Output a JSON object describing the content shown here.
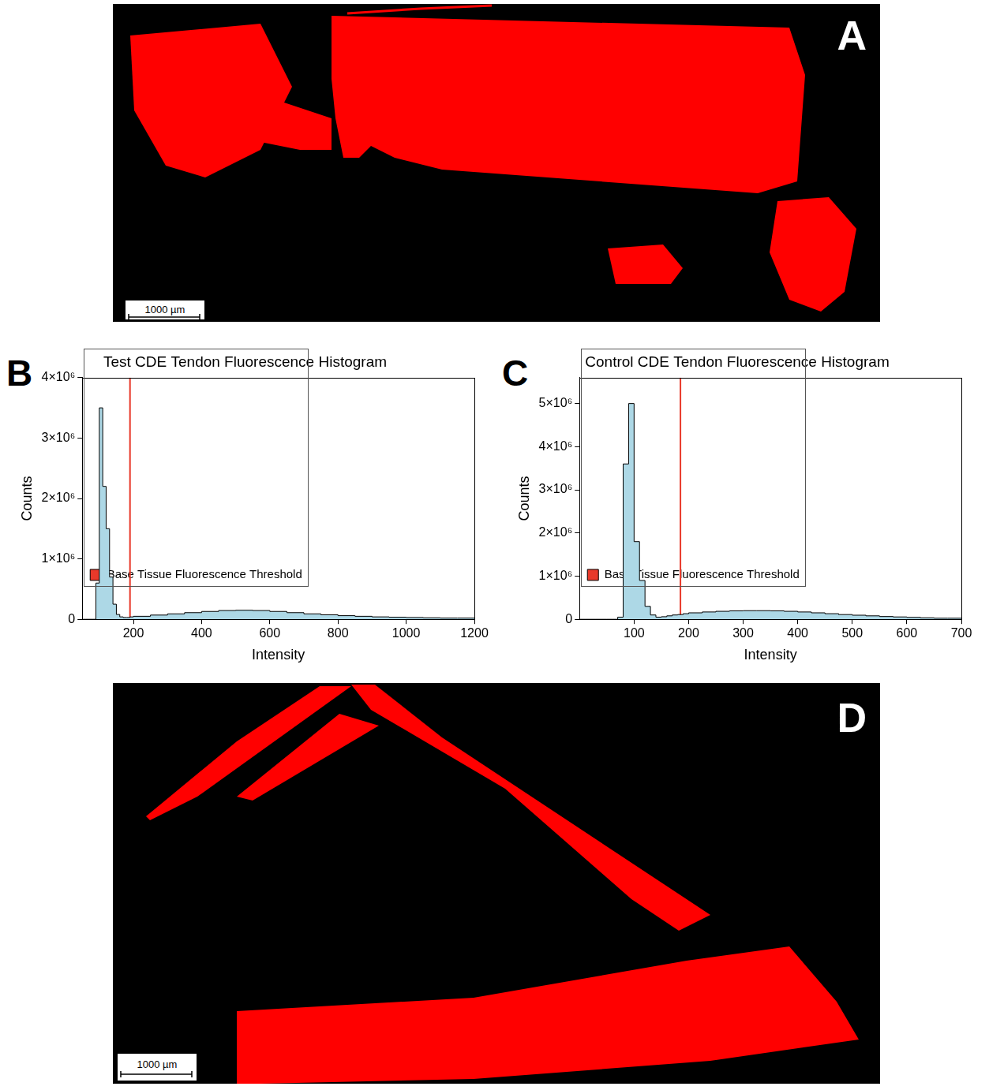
{
  "images": [
    {
      "panel": "A",
      "scale_bar": "1000 µm"
    },
    {
      "panel": "D",
      "scale_bar": "1000 µm"
    }
  ],
  "chart_data": [
    {
      "panel": "B",
      "type": "histogram",
      "title": "Test CDE Tendon Fluorescence Histogram",
      "x_label": "Intensity",
      "y_label": "Counts",
      "bins": [
        50,
        60,
        70,
        80,
        90,
        100,
        110,
        120,
        130,
        140,
        150,
        160,
        170,
        180,
        190,
        200,
        250,
        300,
        350,
        400,
        450,
        500,
        550,
        600,
        650,
        700,
        750,
        800,
        850,
        900,
        950,
        1000,
        1050,
        1100,
        1150,
        1200
      ],
      "counts": [
        0,
        0,
        0,
        0,
        0,
        600000,
        3500000,
        2200000,
        1500000,
        700000,
        250000,
        80000,
        40000,
        30000,
        30000,
        40000,
        50000,
        70000,
        90000,
        110000,
        130000,
        145000,
        150000,
        145000,
        130000,
        110000,
        90000,
        75000,
        60000,
        50000,
        40000,
        35000,
        30000,
        25000,
        20000
      ],
      "color": "#add8e6",
      "xlim": [
        50,
        1200
      ],
      "xticks": [
        200,
        400,
        600,
        800,
        1000,
        1200
      ],
      "ylim": [
        0,
        4000000
      ],
      "yticks": [
        0,
        {
          "value": 1000000,
          "label": "1×10⁶"
        },
        {
          "value": 2000000,
          "label": "2×10⁶"
        },
        {
          "value": 3000000,
          "label": "3×10⁶"
        },
        {
          "value": 4000000,
          "label": "4×10⁶"
        }
      ],
      "grid": false,
      "legend": "upper right",
      "threshold": {
        "name": "Base Tissue Fluorescence Threshold",
        "value": 190,
        "color": "#e8392a"
      }
    },
    {
      "panel": "C",
      "type": "histogram",
      "title": "Control CDE Tendon Fluorescence Histogram",
      "x_label": "Intensity",
      "y_label": "Counts",
      "bins": [
        0,
        10,
        20,
        30,
        40,
        50,
        60,
        70,
        80,
        90,
        100,
        110,
        120,
        130,
        140,
        150,
        160,
        170,
        180,
        190,
        200,
        225,
        250,
        275,
        300,
        325,
        350,
        375,
        400,
        425,
        450,
        475,
        500,
        525,
        550,
        575,
        600,
        625,
        650,
        675,
        700
      ],
      "counts": [
        0,
        0,
        0,
        0,
        0,
        0,
        0,
        0,
        50000,
        3600000,
        5000000,
        1800000,
        900000,
        300000,
        100000,
        50000,
        60000,
        80000,
        100000,
        110000,
        130000,
        150000,
        170000,
        185000,
        195000,
        200000,
        200000,
        195000,
        185000,
        170000,
        150000,
        130000,
        110000,
        95000,
        80000,
        65000,
        55000,
        45000,
        35000,
        25000
      ],
      "color": "#add8e6",
      "xlim": [
        0,
        700
      ],
      "xticks": [
        100,
        200,
        300,
        400,
        500,
        600,
        700
      ],
      "ylim": [
        0,
        5600000
      ],
      "yticks": [
        0,
        {
          "value": 1000000,
          "label": "1×10⁶"
        },
        {
          "value": 2000000,
          "label": "2×10⁶"
        },
        {
          "value": 3000000,
          "label": "3×10⁶"
        },
        {
          "value": 4000000,
          "label": "4×10⁶"
        },
        {
          "value": 5000000,
          "label": "5×10⁶"
        }
      ],
      "grid": false,
      "legend": "upper right",
      "threshold": {
        "name": "Base Tissue Fluorescence Threshold",
        "value": 185,
        "color": "#e8392a"
      }
    }
  ]
}
